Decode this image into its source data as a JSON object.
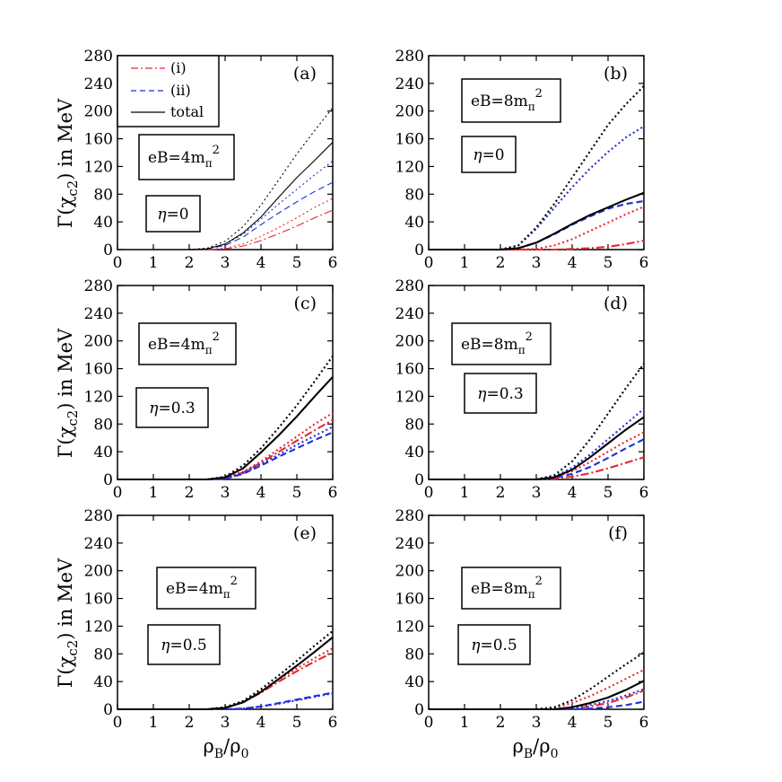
{
  "figure": {
    "ylabel_prefix": "Γ(χ",
    "ylabel_sub": "c2",
    "ylabel_suffix": ") in MeV",
    "xlabel_rho": "ρ",
    "xlabel_B": "B",
    "xlabel_slash": "/ρ",
    "xlabel_0": "0"
  },
  "legend": {
    "items": [
      {
        "label": "(i)",
        "color": "#e8272d",
        "dash": "dashdot"
      },
      {
        "label": "(ii)",
        "color": "#1f2fd6",
        "dash": "dash"
      },
      {
        "label": "total",
        "color": "#000000",
        "dash": "solid"
      }
    ]
  },
  "chart_data": [
    {
      "type": "line",
      "panel": "(a)",
      "eB_text": "eB=4m",
      "eB_sub": "π",
      "eB_sup": "2",
      "eta_text": "=0",
      "xlim": [
        0,
        6
      ],
      "ylim": [
        0,
        280
      ],
      "xticks": [
        "0",
        "1",
        "2",
        "3",
        "4",
        "5",
        "6"
      ],
      "yticks": [
        "0",
        "40",
        "80",
        "120",
        "160",
        "200",
        "240",
        "280"
      ],
      "series": [
        {
          "color": "#e8272d",
          "style": "dashdot",
          "x": [
            2,
            2.5,
            3,
            3.5,
            4,
            4.5,
            5,
            5.5,
            6
          ],
          "y": [
            0,
            0,
            1,
            5,
            13,
            23,
            34,
            46,
            57
          ]
        },
        {
          "color": "#e8272d",
          "style": "dotted",
          "x": [
            2,
            2.5,
            3,
            3.5,
            4,
            4.5,
            5,
            5.5,
            6
          ],
          "y": [
            0,
            0,
            2,
            8,
            19,
            32,
            46,
            61,
            74
          ]
        },
        {
          "color": "#1f2fd6",
          "style": "dash",
          "x": [
            2,
            2.5,
            3,
            3.5,
            4,
            4.5,
            5,
            5.5,
            6
          ],
          "y": [
            0,
            1,
            6,
            18,
            36,
            53,
            69,
            84,
            97
          ]
        },
        {
          "color": "#1f2fd6",
          "style": "dotted",
          "x": [
            2,
            2.5,
            3,
            3.5,
            4,
            4.5,
            5,
            5.5,
            6
          ],
          "y": [
            0,
            1,
            8,
            22,
            44,
            66,
            87,
            108,
            128
          ]
        },
        {
          "color": "#000000",
          "style": "solid",
          "x": [
            2,
            2.5,
            3,
            3.5,
            4,
            4.5,
            5,
            5.5,
            6
          ],
          "y": [
            0,
            1,
            8,
            24,
            47,
            76,
            104,
            129,
            155
          ]
        },
        {
          "color": "#000000",
          "style": "dotted",
          "x": [
            2,
            2.5,
            3,
            3.5,
            4,
            4.5,
            5,
            5.5,
            6
          ],
          "y": [
            0,
            2,
            12,
            33,
            64,
            101,
            138,
            172,
            205
          ]
        }
      ]
    },
    {
      "type": "line",
      "panel": "(b)",
      "eB_text": "eB=8m",
      "eB_sub": "π",
      "eB_sup": "2",
      "eta_text": "=0",
      "xlim": [
        0,
        6
      ],
      "ylim": [
        0,
        280
      ],
      "xticks": [
        "0",
        "1",
        "2",
        "3",
        "4",
        "5",
        "6"
      ],
      "yticks": [
        "0",
        "40",
        "80",
        "120",
        "160",
        "200",
        "240",
        "280"
      ],
      "series": [
        {
          "color": "#e8272d",
          "style": "dashdot",
          "x": [
            3,
            3.5,
            4,
            4.5,
            5,
            5.5,
            6
          ],
          "y": [
            0,
            0,
            1,
            2,
            4,
            8,
            13
          ]
        },
        {
          "color": "#e8272d",
          "style": "dotted",
          "x": [
            2.5,
            3,
            3.5,
            4,
            4.5,
            5,
            5.5,
            6
          ],
          "y": [
            0,
            1,
            6,
            15,
            27,
            39,
            51,
            62
          ]
        },
        {
          "color": "#1f2fd6",
          "style": "dash",
          "x": [
            2,
            2.5,
            3,
            3.5,
            4,
            4.5,
            5,
            5.5,
            6
          ],
          "y": [
            0,
            2,
            10,
            22,
            36,
            48,
            59,
            66,
            70
          ]
        },
        {
          "color": "#1f2fd6",
          "style": "dotted",
          "x": [
            2,
            2.5,
            3,
            3.5,
            4,
            4.5,
            5,
            5.5,
            6
          ],
          "y": [
            0,
            6,
            30,
            60,
            90,
            117,
            141,
            162,
            178
          ]
        },
        {
          "color": "#000000",
          "style": "solid",
          "x": [
            2,
            2.5,
            3,
            3.5,
            4,
            4.5,
            5,
            5.5,
            6
          ],
          "y": [
            0,
            2,
            10,
            23,
            37,
            50,
            61,
            72,
            82
          ]
        },
        {
          "color": "#000000",
          "style": "dotted",
          "x": [
            2,
            2.5,
            3,
            3.5,
            4,
            4.5,
            5,
            5.5,
            6
          ],
          "y": [
            0,
            6,
            32,
            66,
            104,
            142,
            180,
            210,
            236
          ]
        }
      ]
    },
    {
      "type": "line",
      "panel": "(c)",
      "eB_text": "eB=4m",
      "eB_sub": "π",
      "eB_sup": "2",
      "eta_text": "=0.3",
      "xlim": [
        0,
        6
      ],
      "ylim": [
        0,
        280
      ],
      "xticks": [
        "0",
        "1",
        "2",
        "3",
        "4",
        "5",
        "6"
      ],
      "yticks": [
        "0",
        "40",
        "80",
        "120",
        "160",
        "200",
        "240",
        "280"
      ],
      "series": [
        {
          "color": "#e8272d",
          "style": "dashdot",
          "x": [
            2.5,
            3,
            3.5,
            4,
            4.5,
            5,
            5.5,
            6
          ],
          "y": [
            0,
            2,
            10,
            24,
            40,
            56,
            71,
            86
          ]
        },
        {
          "color": "#e8272d",
          "style": "dotted",
          "x": [
            2.5,
            3,
            3.5,
            4,
            4.5,
            5,
            5.5,
            6
          ],
          "y": [
            0,
            2,
            11,
            26,
            44,
            62,
            80,
            96
          ]
        },
        {
          "color": "#1f2fd6",
          "style": "dash",
          "x": [
            2.5,
            3,
            3.5,
            4,
            4.5,
            5,
            5.5,
            6
          ],
          "y": [
            0,
            1,
            8,
            20,
            33,
            45,
            57,
            68
          ]
        },
        {
          "color": "#1f2fd6",
          "style": "dotted",
          "x": [
            2.5,
            3,
            3.5,
            4,
            4.5,
            5,
            5.5,
            6
          ],
          "y": [
            0,
            1,
            9,
            22,
            36,
            50,
            63,
            76
          ]
        },
        {
          "color": "#000000",
          "style": "solid",
          "x": [
            2.5,
            3,
            3.5,
            4,
            4.5,
            5,
            5.5,
            6
          ],
          "y": [
            0,
            3,
            16,
            39,
            64,
            91,
            120,
            148
          ]
        },
        {
          "color": "#000000",
          "style": "dotted",
          "x": [
            2.5,
            3,
            3.5,
            4,
            4.5,
            5,
            5.5,
            6
          ],
          "y": [
            0,
            4,
            20,
            45,
            75,
            107,
            142,
            178
          ]
        }
      ]
    },
    {
      "type": "line",
      "panel": "(d)",
      "eB_text": "eB=8m",
      "eB_sub": "π",
      "eB_sup": "2",
      "eta_text": "=0.3",
      "xlim": [
        0,
        6
      ],
      "ylim": [
        0,
        280
      ],
      "xticks": [
        "0",
        "1",
        "2",
        "3",
        "4",
        "5",
        "6"
      ],
      "yticks": [
        "0",
        "40",
        "80",
        "120",
        "160",
        "200",
        "240",
        "280"
      ],
      "series": [
        {
          "color": "#e8272d",
          "style": "dashdot",
          "x": [
            3,
            3.5,
            4,
            4.5,
            5,
            5.5,
            6
          ],
          "y": [
            0,
            1,
            4,
            9,
            16,
            24,
            32
          ]
        },
        {
          "color": "#e8272d",
          "style": "dotted",
          "x": [
            3,
            3.5,
            4,
            4.5,
            5,
            5.5,
            6
          ],
          "y": [
            0,
            3,
            12,
            25,
            40,
            55,
            68
          ]
        },
        {
          "color": "#1f2fd6",
          "style": "dash",
          "x": [
            3,
            3.5,
            4,
            4.5,
            5,
            5.5,
            6
          ],
          "y": [
            0,
            2,
            8,
            18,
            31,
            45,
            58
          ]
        },
        {
          "color": "#1f2fd6",
          "style": "dotted",
          "x": [
            3,
            3.5,
            4,
            4.5,
            5,
            5.5,
            6
          ],
          "y": [
            0,
            4,
            17,
            36,
            58,
            80,
            102
          ]
        },
        {
          "color": "#000000",
          "style": "solid",
          "x": [
            3,
            3.5,
            4,
            4.5,
            5,
            5.5,
            6
          ],
          "y": [
            0,
            3,
            14,
            32,
            52,
            72,
            90
          ]
        },
        {
          "color": "#000000",
          "style": "dotted",
          "x": [
            3,
            3.5,
            4,
            4.5,
            5,
            5.5,
            6
          ],
          "y": [
            0,
            6,
            26,
            58,
            95,
            132,
            167
          ]
        }
      ]
    },
    {
      "type": "line",
      "panel": "(e)",
      "eB_text": "eB=4m",
      "eB_sub": "π",
      "eB_sup": "2",
      "eta_text": "=0.5",
      "xlim": [
        0,
        6
      ],
      "ylim": [
        0,
        280
      ],
      "xticks": [
        "0",
        "1",
        "2",
        "3",
        "4",
        "5",
        "6"
      ],
      "yticks": [
        "0",
        "40",
        "80",
        "120",
        "160",
        "200",
        "240",
        "280"
      ],
      "series": [
        {
          "color": "#e8272d",
          "style": "dashdot",
          "x": [
            2.5,
            3,
            3.5,
            4,
            4.5,
            5,
            5.5,
            6
          ],
          "y": [
            0,
            2,
            10,
            24,
            40,
            55,
            69,
            82
          ]
        },
        {
          "color": "#e8272d",
          "style": "dotted",
          "x": [
            2.5,
            3,
            3.5,
            4,
            4.5,
            5,
            5.5,
            6
          ],
          "y": [
            0,
            2,
            11,
            26,
            43,
            59,
            74,
            88
          ]
        },
        {
          "color": "#1f2fd6",
          "style": "dash",
          "x": [
            2.5,
            3,
            3.5,
            4,
            4.5,
            5,
            5.5,
            6
          ],
          "y": [
            0,
            0,
            1,
            4,
            9,
            14,
            19,
            24
          ]
        },
        {
          "color": "#1f2fd6",
          "style": "dotted",
          "x": [
            2.5,
            3,
            3.5,
            4,
            4.5,
            5,
            5.5,
            6
          ],
          "y": [
            0,
            0,
            1,
            4,
            8,
            13,
            18,
            23
          ]
        },
        {
          "color": "#000000",
          "style": "solid",
          "x": [
            2.5,
            3,
            3.5,
            4,
            4.5,
            5,
            5.5,
            6
          ],
          "y": [
            0,
            2,
            10,
            25,
            44,
            63,
            83,
            104
          ]
        },
        {
          "color": "#000000",
          "style": "dotted",
          "x": [
            2.5,
            3,
            3.5,
            4,
            4.5,
            5,
            5.5,
            6
          ],
          "y": [
            0,
            3,
            12,
            29,
            49,
            70,
            92,
            113
          ]
        }
      ]
    },
    {
      "type": "line",
      "panel": "(f)",
      "eB_text": "eB=8m",
      "eB_sub": "π",
      "eB_sup": "2",
      "eta_text": "=0.5",
      "xlim": [
        0,
        6
      ],
      "ylim": [
        0,
        280
      ],
      "xticks": [
        "0",
        "1",
        "2",
        "3",
        "4",
        "5",
        "6"
      ],
      "yticks": [
        "0",
        "40",
        "80",
        "120",
        "160",
        "200",
        "240",
        "280"
      ],
      "series": [
        {
          "color": "#e8272d",
          "style": "dashdot",
          "x": [
            3.5,
            4,
            4.5,
            5,
            5.5,
            6
          ],
          "y": [
            0,
            1,
            4,
            9,
            17,
            27
          ]
        },
        {
          "color": "#e8272d",
          "style": "dotted",
          "x": [
            3,
            3.5,
            4,
            4.5,
            5,
            5.5,
            6
          ],
          "y": [
            0,
            2,
            9,
            19,
            31,
            44,
            57
          ]
        },
        {
          "color": "#1f2fd6",
          "style": "dash",
          "x": [
            3.5,
            4,
            4.5,
            5,
            5.5,
            6
          ],
          "y": [
            0,
            0,
            1,
            3,
            6,
            11
          ]
        },
        {
          "color": "#1f2fd6",
          "style": "dotted",
          "x": [
            3.5,
            4,
            4.5,
            5,
            5.5,
            6
          ],
          "y": [
            0,
            2,
            6,
            12,
            20,
            29
          ]
        },
        {
          "color": "#000000",
          "style": "solid",
          "x": [
            3.5,
            4,
            4.5,
            5,
            5.5,
            6
          ],
          "y": [
            0,
            3,
            9,
            17,
            28,
            41
          ]
        },
        {
          "color": "#000000",
          "style": "dotted",
          "x": [
            3,
            3.5,
            4,
            4.5,
            5,
            5.5,
            6
          ],
          "y": [
            0,
            3,
            13,
            29,
            47,
            65,
            82
          ]
        }
      ]
    }
  ]
}
